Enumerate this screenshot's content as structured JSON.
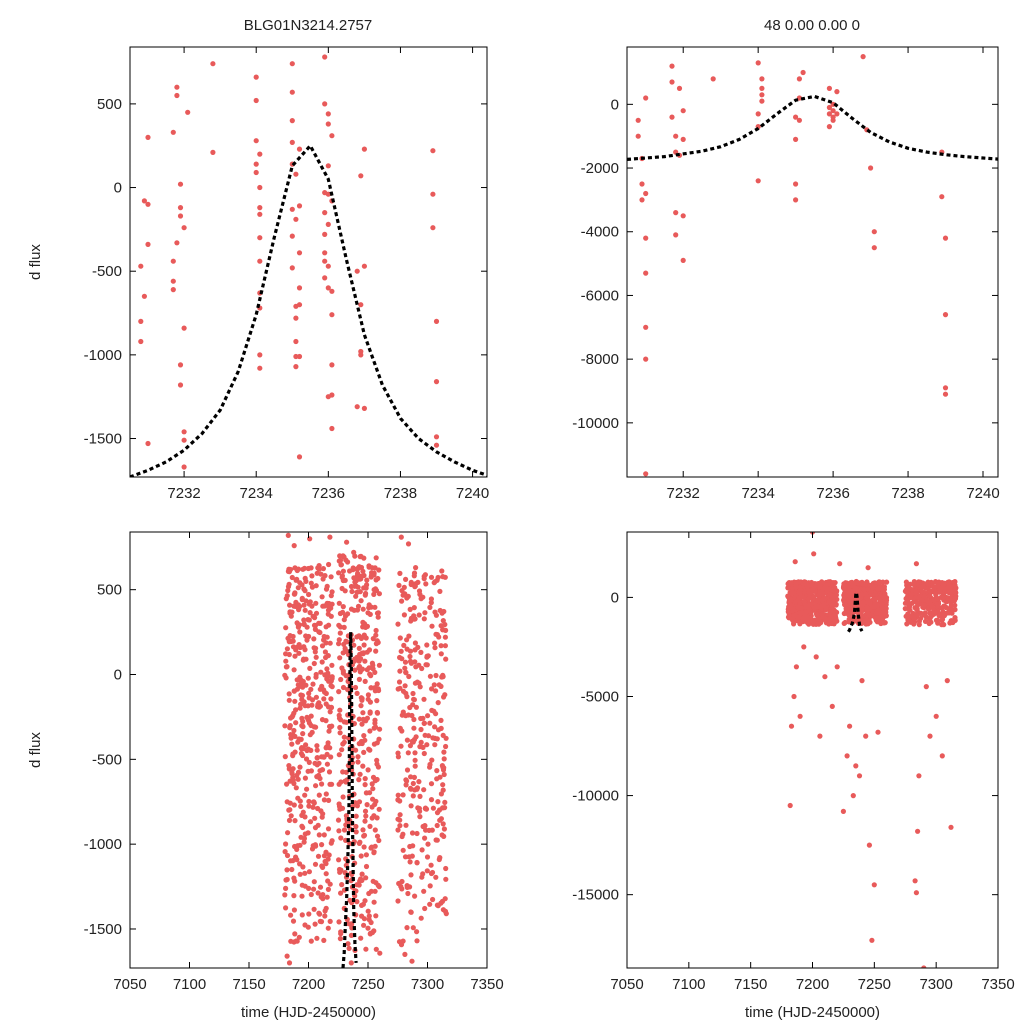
{
  "header": {
    "left_title": "BLG01N3214.2757",
    "right_title": "48  0.00  0.00  0"
  },
  "colors": {
    "points": "#e85a5a",
    "model": "#000000",
    "frame": "#000000"
  },
  "chart_data": [
    {
      "type": "scatter",
      "panel": "top-left",
      "xlabel": "",
      "ylabel": "d flux",
      "xlim": [
        7230.5,
        7240.4
      ],
      "ylim": [
        -1730,
        840
      ],
      "xticks": [
        7232,
        7234,
        7236,
        7238,
        7240
      ],
      "yticks": [
        -1500,
        -1000,
        -500,
        0,
        500
      ],
      "series": [
        {
          "kind": "points",
          "x": [
            7230.8,
            7230.8,
            7230.8,
            7230.9,
            7230.9,
            7231.0,
            7231.0,
            7231.0,
            7231.0,
            7231.7,
            7231.7,
            7231.7,
            7231.7,
            7231.8,
            7231.8,
            7231.8,
            7231.9,
            7231.9,
            7231.9,
            7231.9,
            7231.9,
            7232.0,
            7232.0,
            7232.0,
            7232.0,
            7232.0,
            7232.1,
            7232.8,
            7232.8,
            7234.0,
            7234.0,
            7234.0,
            7234.0,
            7234.0,
            7234.1,
            7234.1,
            7234.1,
            7234.1,
            7234.1,
            7234.1,
            7234.1,
            7234.1,
            7234.1,
            7234.1,
            7235.0,
            7235.0,
            7235.0,
            7235.0,
            7235.0,
            7235.0,
            7235.0,
            7235.0,
            7235.1,
            7235.1,
            7235.1,
            7235.1,
            7235.1,
            7235.1,
            7235.1,
            7235.2,
            7235.2,
            7235.2,
            7235.2,
            7235.2,
            7235.2,
            7235.2,
            7235.9,
            7235.9,
            7235.9,
            7235.9,
            7235.9,
            7235.9,
            7235.9,
            7235.9,
            7236.0,
            7236.0,
            7236.0,
            7236.0,
            7236.0,
            7236.0,
            7236.0,
            7236.0,
            7236.1,
            7236.1,
            7236.1,
            7236.1,
            7236.1,
            7236.1,
            7236.1,
            7236.8,
            7236.8,
            7236.9,
            7236.9,
            7236.9,
            7236.9,
            7237.0,
            7237.0,
            7237.0,
            7238.9,
            7238.9,
            7238.9,
            7239.0,
            7239.0,
            7239.0,
            7239.0
          ],
          "y": [
            -470,
            -800,
            -920,
            -80,
            -650,
            300,
            -100,
            -340,
            -1530,
            330,
            -440,
            -610,
            -560,
            600,
            550,
            -330,
            -120,
            -1060,
            -1180,
            20,
            -170,
            -240,
            -840,
            -1510,
            -1670,
            -1460,
            450,
            740,
            210,
            660,
            520,
            280,
            140,
            90,
            0,
            -120,
            -300,
            -440,
            -630,
            -720,
            -1000,
            -1080,
            200,
            -160,
            740,
            570,
            400,
            270,
            140,
            -130,
            -290,
            -480,
            -710,
            -780,
            -920,
            -1010,
            -1070,
            80,
            -190,
            -1610,
            -600,
            -1010,
            -700,
            -390,
            -110,
            230,
            780,
            500,
            -30,
            -150,
            -280,
            -390,
            -440,
            -540,
            440,
            380,
            130,
            -40,
            -220,
            -470,
            -600,
            -1250,
            -1440,
            310,
            -80,
            -620,
            -760,
            -1060,
            -1240,
            -1310,
            -500,
            -700,
            -980,
            70,
            -1000,
            230,
            -470,
            -1320,
            220,
            -40,
            -240,
            -800,
            -1160,
            -1490,
            -1540
          ]
        },
        {
          "kind": "model-dashed",
          "x": [
            7230.5,
            7231.0,
            7231.5,
            7232.0,
            7232.5,
            7233.0,
            7233.5,
            7234.0,
            7234.5,
            7235.0,
            7235.5,
            7236.0,
            7236.5,
            7237.0,
            7237.5,
            7238.0,
            7238.5,
            7239.0,
            7239.5,
            7240.0,
            7240.4
          ],
          "y": [
            -1730,
            -1690,
            -1640,
            -1570,
            -1470,
            -1330,
            -1100,
            -760,
            -300,
            130,
            250,
            50,
            -430,
            -880,
            -1180,
            -1380,
            -1500,
            -1580,
            -1640,
            -1690,
            -1720
          ]
        }
      ]
    },
    {
      "type": "scatter",
      "panel": "top-right",
      "xlabel": "",
      "ylabel": "",
      "xlim": [
        7230.5,
        7240.4
      ],
      "ylim": [
        -11700,
        1800
      ],
      "xticks": [
        7232,
        7234,
        7236,
        7238,
        7240
      ],
      "yticks": [
        -10000,
        -8000,
        -6000,
        -4000,
        -2000,
        0
      ],
      "series": [
        {
          "kind": "points",
          "x": [
            7230.8,
            7230.8,
            7230.9,
            7230.9,
            7230.9,
            7231.0,
            7231.0,
            7231.0,
            7231.0,
            7231.0,
            7231.0,
            7231.0,
            7231.7,
            7231.7,
            7231.7,
            7231.8,
            7231.8,
            7231.8,
            7231.8,
            7231.9,
            7231.9,
            7232.0,
            7232.0,
            7232.0,
            7232.0,
            7232.8,
            7234.0,
            7234.0,
            7234.0,
            7234.0,
            7234.1,
            7234.1,
            7234.1,
            7234.1,
            7235.0,
            7235.0,
            7235.0,
            7235.0,
            7235.1,
            7235.1,
            7235.1,
            7235.2,
            7235.9,
            7235.9,
            7235.9,
            7235.9,
            7236.0,
            7236.0,
            7236.0,
            7236.0,
            7236.1,
            7236.1,
            7236.8,
            7236.9,
            7237.0,
            7237.1,
            7237.1,
            7238.9,
            7238.9,
            7239.0,
            7239.0,
            7239.0,
            7239.0
          ],
          "y": [
            -500,
            -1000,
            -1700,
            -2500,
            -3000,
            200,
            -2800,
            -4200,
            -5300,
            -7000,
            -8000,
            -11600,
            1200,
            700,
            -400,
            -1000,
            -3400,
            -4100,
            -1500,
            500,
            -1600,
            -200,
            -3500,
            -4900,
            -1100,
            800,
            1300,
            -700,
            -2400,
            -300,
            800,
            500,
            300,
            100,
            -1100,
            -3000,
            -2500,
            -400,
            200,
            -500,
            800,
            1000,
            500,
            -100,
            -300,
            -700,
            -200,
            -500,
            -400,
            0,
            400,
            -300,
            1500,
            -800,
            -2000,
            -4000,
            -4500,
            -1500,
            -2900,
            -4200,
            -6600,
            -8900,
            -9100
          ]
        },
        {
          "kind": "model-dashed",
          "x": [
            7230.5,
            7231.5,
            7232.5,
            7233.0,
            7233.5,
            7234.0,
            7234.5,
            7235.0,
            7235.5,
            7236.0,
            7236.5,
            7237.0,
            7237.5,
            7238.0,
            7238.5,
            7239.0,
            7239.5,
            7240.4
          ],
          "y": [
            -1730,
            -1640,
            -1470,
            -1330,
            -1100,
            -760,
            -300,
            130,
            250,
            50,
            -430,
            -880,
            -1180,
            -1380,
            -1500,
            -1580,
            -1640,
            -1720
          ]
        }
      ]
    },
    {
      "type": "scatter",
      "panel": "bottom-left",
      "xlabel": "time (HJD-2450000)",
      "ylabel": "d flux",
      "xlim": [
        7050,
        7350
      ],
      "ylim": [
        -1730,
        840
      ],
      "xticks": [
        7050,
        7100,
        7150,
        7200,
        7250,
        7300,
        7350
      ],
      "yticks": [
        -1500,
        -1000,
        -500,
        0,
        500
      ],
      "point_clusters": [
        {
          "x_range": [
            7180,
            7220
          ],
          "y_range": [
            -1600,
            650
          ],
          "count": 450
        },
        {
          "x_range": [
            7225,
            7260
          ],
          "y_range": [
            -1650,
            700
          ],
          "count": 420
        },
        {
          "x_range": [
            7275,
            7316
          ],
          "y_range": [
            -1600,
            600
          ],
          "count": 320
        }
      ],
      "sparse_points": {
        "x": [
          7183,
          7188,
          7201,
          7209,
          7218,
          7229,
          7232,
          7238,
          7241,
          7253,
          7278,
          7284,
          7290,
          7312,
          7182,
          7184,
          7236,
          7257,
          7281,
          7287
        ],
        "y": [
          820,
          760,
          800,
          620,
          810,
          700,
          780,
          720,
          620,
          600,
          810,
          770,
          630,
          610,
          -1660,
          -1700,
          -1700,
          -1620,
          -1650,
          -1690
        ]
      },
      "series": [
        {
          "kind": "model-dashed",
          "x": [
            7229.0,
            7230.0,
            7231.0,
            7232.0,
            7233.0,
            7234.0,
            7235.0,
            7235.5,
            7236.0,
            7237.0,
            7238.0,
            7239.0,
            7240.0
          ],
          "y": [
            -1730,
            -1640,
            -1470,
            -1330,
            -1100,
            -760,
            130,
            250,
            50,
            -880,
            -1380,
            -1580,
            -1700
          ]
        }
      ]
    },
    {
      "type": "scatter",
      "panel": "bottom-right",
      "xlabel": "time (HJD-2450000)",
      "ylabel": "",
      "xlim": [
        7050,
        7350
      ],
      "ylim": [
        -18700,
        3300
      ],
      "xticks": [
        7050,
        7100,
        7150,
        7200,
        7250,
        7300,
        7350
      ],
      "yticks": [
        -15000,
        -10000,
        -5000,
        0
      ],
      "point_clusters": [
        {
          "x_range": [
            7180,
            7220
          ],
          "y_range": [
            -1400,
            800
          ],
          "count": 450
        },
        {
          "x_range": [
            7225,
            7260
          ],
          "y_range": [
            -1400,
            800
          ],
          "count": 420
        },
        {
          "x_range": [
            7275,
            7316
          ],
          "y_range": [
            -1400,
            800
          ],
          "count": 320
        }
      ],
      "sparse_points": {
        "x": [
          7182,
          7183,
          7185,
          7187,
          7190,
          7193,
          7200,
          7203,
          7206,
          7210,
          7216,
          7220,
          7225,
          7228,
          7230,
          7233,
          7235,
          7238,
          7240,
          7243,
          7246,
          7248,
          7250,
          7253,
          7283,
          7284,
          7285,
          7286,
          7290,
          7292,
          7295,
          7300,
          7305,
          7309,
          7312,
          7201,
          7186,
          7222,
          7245,
          7284
        ],
        "y": [
          -10500,
          -6500,
          -5000,
          -3500,
          -6000,
          -2500,
          3300,
          -3000,
          -7000,
          -4000,
          -5500,
          -3500,
          -10800,
          -8000,
          -6500,
          -10000,
          -8500,
          -9000,
          -4200,
          -7000,
          -12500,
          -17300,
          -14500,
          -6800,
          -14300,
          -14900,
          -11800,
          -9000,
          -18700,
          -4500,
          -7000,
          -6000,
          -8000,
          -4200,
          -11600,
          2200,
          1800,
          1700,
          1500,
          1700
        ]
      },
      "series": [
        {
          "kind": "model-dashed",
          "x": [
            7229.0,
            7230.0,
            7231.0,
            7232.0,
            7233.0,
            7234.0,
            7235.0,
            7235.5,
            7236.0,
            7237.0,
            7238.0,
            7239.0,
            7240.0
          ],
          "y": [
            -1730,
            -1640,
            -1470,
            -1330,
            -1100,
            -760,
            130,
            250,
            50,
            -880,
            -1380,
            -1580,
            -1700
          ]
        }
      ]
    }
  ]
}
